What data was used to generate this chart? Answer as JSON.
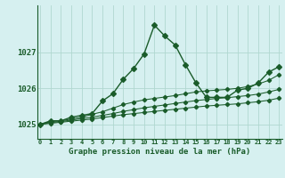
{
  "xlabel": "Graphe pression niveau de la mer (hPa)",
  "bg_color": "#d6f0f0",
  "grid_color": "#b0d8d0",
  "line_color": "#1a5c2a",
  "ylim": [
    1024.6,
    1028.3
  ],
  "xlim": [
    -0.3,
    23.3
  ],
  "yticks": [
    1025,
    1026,
    1027
  ],
  "xticks": [
    0,
    1,
    2,
    3,
    4,
    5,
    6,
    7,
    8,
    9,
    10,
    11,
    12,
    13,
    14,
    15,
    16,
    17,
    18,
    19,
    20,
    21,
    22,
    23
  ],
  "series": [
    [
      1025.0,
      1025.1,
      1025.1,
      1025.2,
      1025.25,
      1025.3,
      1025.65,
      1025.85,
      1026.25,
      1026.55,
      1026.95,
      1027.75,
      1027.45,
      1027.2,
      1026.65,
      1026.15,
      1025.75,
      1025.75,
      1025.75,
      1025.95,
      1026.0,
      1026.15,
      1026.45,
      1026.6
    ],
    [
      1025.0,
      1025.08,
      1025.1,
      1025.15,
      1025.2,
      1025.28,
      1025.35,
      1025.45,
      1025.55,
      1025.62,
      1025.68,
      1025.72,
      1025.76,
      1025.8,
      1025.85,
      1025.9,
      1025.93,
      1025.95,
      1025.97,
      1026.0,
      1026.05,
      1026.12,
      1026.22,
      1026.38
    ],
    [
      1025.0,
      1025.05,
      1025.08,
      1025.12,
      1025.16,
      1025.2,
      1025.25,
      1025.3,
      1025.36,
      1025.41,
      1025.46,
      1025.5,
      1025.54,
      1025.58,
      1025.62,
      1025.66,
      1025.69,
      1025.72,
      1025.74,
      1025.77,
      1025.8,
      1025.84,
      1025.9,
      1025.97
    ],
    [
      1025.0,
      1025.03,
      1025.06,
      1025.09,
      1025.12,
      1025.15,
      1025.19,
      1025.23,
      1025.27,
      1025.3,
      1025.33,
      1025.36,
      1025.39,
      1025.42,
      1025.45,
      1025.48,
      1025.51,
      1025.53,
      1025.55,
      1025.57,
      1025.6,
      1025.63,
      1025.67,
      1025.73
    ]
  ]
}
